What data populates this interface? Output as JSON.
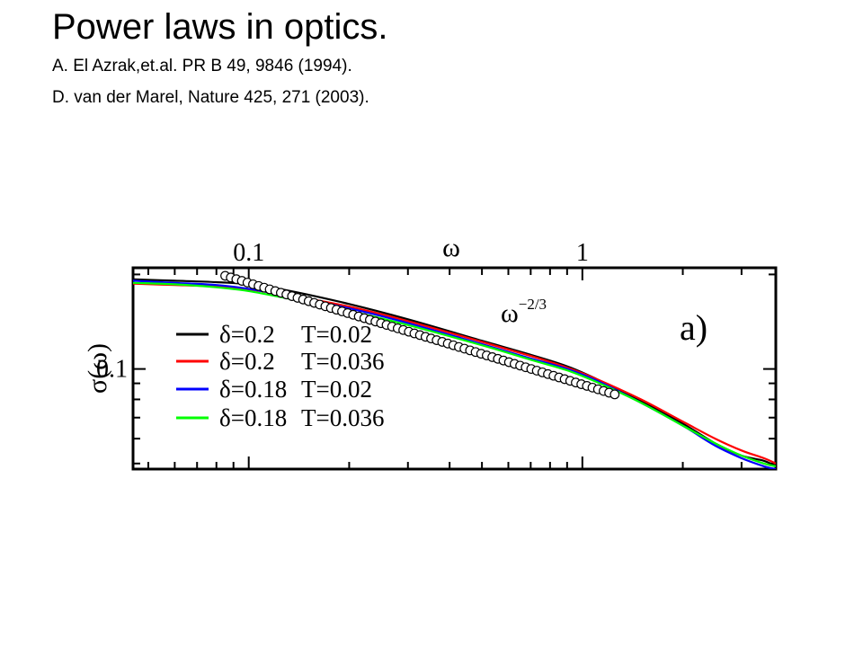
{
  "slide": {
    "title": "Power laws in optics.",
    "references": [
      "A. El Azrak,et.al. PR B 49, 9846 (1994).",
      "D. van der Marel,  Nature 425, 271 (2003)."
    ]
  },
  "chart_data": {
    "type": "line",
    "panel_label": "a)",
    "xlabel": "ω",
    "ylabel": "σ(ω)",
    "x_scale": "log",
    "y_scale": "log",
    "xlim": [
      0.045,
      3.8
    ],
    "ylim": [
      0.048,
      0.21
    ],
    "x_tick_labels": [
      {
        "value": 0.1,
        "label": "0.1"
      },
      {
        "value": 1,
        "label": "1"
      }
    ],
    "y_tick_labels": [
      {
        "value": 0.1,
        "label": "0.1"
      }
    ],
    "grid": false,
    "legend_position": "left",
    "annotation": {
      "text": "ω",
      "superscript": "−2/3"
    },
    "colors": {
      "black": "#000000",
      "red": "#ff0000",
      "blue": "#0000ff",
      "green": "#00ff00",
      "markers": "#000000"
    },
    "series": [
      {
        "name_delta": "δ=0.2",
        "name_T": "T=0.02",
        "color": "#000000",
        "x": [
          0.045,
          0.06,
          0.08,
          0.1,
          0.13,
          0.2,
          0.3,
          0.5,
          0.7,
          0.9,
          1.1,
          1.5,
          2.0,
          2.5,
          3.0,
          3.5,
          3.8
        ],
        "y": [
          0.193,
          0.191,
          0.189,
          0.186,
          0.178,
          0.161,
          0.144,
          0.123,
          0.111,
          0.102,
          0.093,
          0.079,
          0.067,
          0.058,
          0.053,
          0.051,
          0.049
        ]
      },
      {
        "name_delta": "δ=0.2",
        "name_T": "T=0.036",
        "color": "#ff0000",
        "x": [
          0.045,
          0.06,
          0.08,
          0.1,
          0.13,
          0.2,
          0.3,
          0.5,
          0.7,
          0.9,
          1.1,
          1.5,
          2.0,
          2.5,
          3.0,
          3.5,
          3.8
        ],
        "y": [
          0.187,
          0.185,
          0.183,
          0.179,
          0.172,
          0.158,
          0.142,
          0.122,
          0.11,
          0.101,
          0.093,
          0.08,
          0.068,
          0.06,
          0.055,
          0.052,
          0.05
        ]
      },
      {
        "name_delta": "δ=0.18",
        "name_T": "T=0.02",
        "color": "#0000ff",
        "x": [
          0.045,
          0.06,
          0.08,
          0.1,
          0.13,
          0.2,
          0.3,
          0.5,
          0.7,
          0.9,
          1.1,
          1.5,
          2.0,
          2.5,
          3.0,
          3.5,
          3.8
        ],
        "y": [
          0.191,
          0.188,
          0.185,
          0.18,
          0.171,
          0.156,
          0.14,
          0.12,
          0.108,
          0.1,
          0.092,
          0.078,
          0.066,
          0.057,
          0.052,
          0.049,
          0.048
        ]
      },
      {
        "name_delta": "δ=0.18",
        "name_T": "T=0.036",
        "color": "#00ff00",
        "x": [
          0.045,
          0.06,
          0.08,
          0.1,
          0.13,
          0.2,
          0.3,
          0.5,
          0.7,
          0.9,
          1.1,
          1.5,
          2.0,
          2.5,
          3.0,
          3.5,
          3.8
        ],
        "y": [
          0.188,
          0.186,
          0.182,
          0.177,
          0.168,
          0.153,
          0.138,
          0.119,
          0.107,
          0.099,
          0.091,
          0.078,
          0.066,
          0.058,
          0.053,
          0.05,
          0.049
        ]
      }
    ],
    "markers": {
      "name": "ω^−2/3",
      "style": "open-circle",
      "count": 71,
      "x_start": 0.085,
      "x_end": 1.25,
      "y_start": 0.198,
      "y_end": 0.083
    }
  }
}
